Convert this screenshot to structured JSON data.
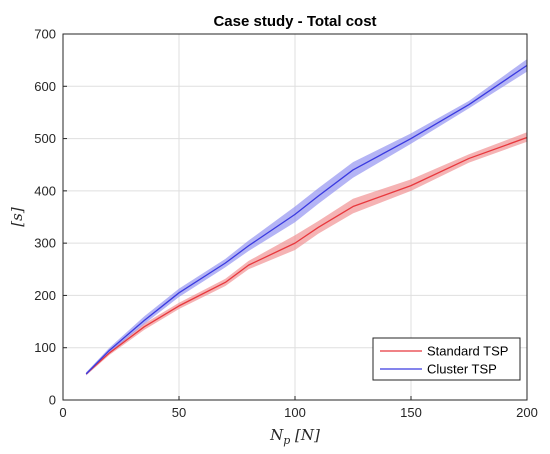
{
  "chart_data": {
    "type": "line",
    "title": "Case study - Total cost",
    "xlabel": "N_p [N]",
    "ylabel": "[s]",
    "xlim": [
      0,
      200
    ],
    "ylim": [
      0,
      700
    ],
    "xticks": [
      "0",
      "50",
      "100",
      "150",
      "200"
    ],
    "yticks": [
      "0",
      "100",
      "200",
      "300",
      "400",
      "500",
      "600",
      "700"
    ],
    "grid": true,
    "legend_position": "bottom-right",
    "x": [
      10,
      20,
      35,
      50,
      70,
      80,
      100,
      110,
      125,
      150,
      175,
      200
    ],
    "series": [
      {
        "name": "Standard TSP",
        "color": "#e8383d",
        "band_color": "#f08a8c",
        "values": [
          50,
          90,
          140,
          180,
          225,
          258,
          300,
          330,
          370,
          410,
          462,
          502
        ],
        "upper": [
          52,
          94,
          146,
          186,
          232,
          266,
          315,
          342,
          385,
          422,
          470,
          512
        ],
        "lower": [
          47,
          86,
          134,
          174,
          218,
          250,
          287,
          318,
          357,
          400,
          454,
          494
        ]
      },
      {
        "name": "Cluster TSP",
        "color": "#3a3ae0",
        "band_color": "#8c8cf0",
        "values": [
          50,
          95,
          152,
          205,
          262,
          295,
          355,
          390,
          440,
          500,
          565,
          640
        ],
        "upper": [
          53,
          100,
          160,
          213,
          270,
          305,
          370,
          405,
          455,
          510,
          572,
          652
        ],
        "lower": [
          47,
          90,
          145,
          197,
          254,
          285,
          340,
          375,
          425,
          490,
          558,
          628
        ]
      }
    ]
  }
}
